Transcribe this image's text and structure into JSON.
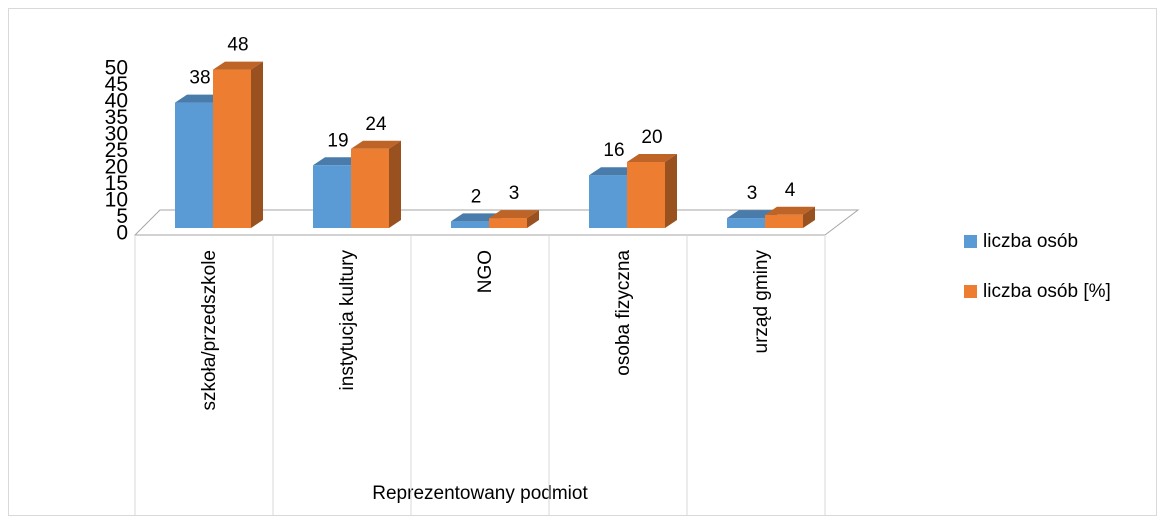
{
  "chart_data": {
    "type": "bar3d",
    "x_label": "Reprezentowany podmiot",
    "categories": [
      "szkoła/przedszkole",
      "instytucja kultury",
      "NGO",
      "osoba fizyczna",
      "urząd gminy"
    ],
    "series": [
      {
        "name": "liczba osób",
        "color": "#5b9bd5",
        "values": [
          38,
          19,
          2,
          16,
          3
        ]
      },
      {
        "name": "liczba osób [%]",
        "color": "#ed7d31",
        "values": [
          48,
          24,
          3,
          20,
          4
        ]
      }
    ],
    "ylim": [
      0,
      50
    ],
    "yticks": [
      0,
      5,
      10,
      15,
      20,
      25,
      30,
      35,
      40,
      45,
      50
    ],
    "grid": false,
    "legend": "right"
  }
}
